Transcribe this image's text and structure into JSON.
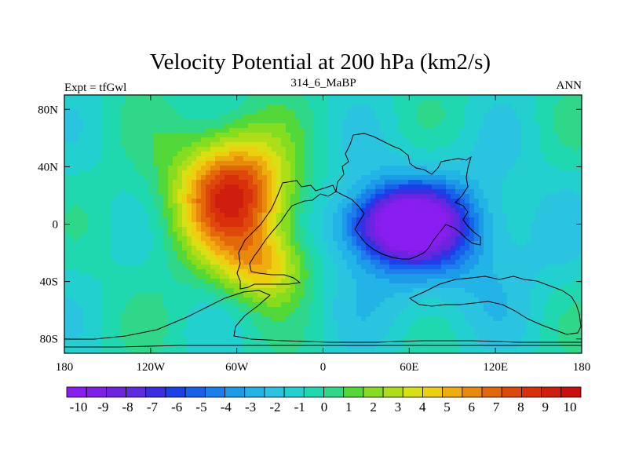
{
  "chart_data": {
    "type": "heatmap",
    "title": "Velocity Potential at 200 hPa (km2/s)",
    "left_label": "Expt = tfGwl",
    "center_label": "314_6_MaBP",
    "right_label": "ANN",
    "xlim": [
      -180,
      180
    ],
    "ylim": [
      -90,
      90
    ],
    "x_ticks": [
      {
        "value": -180,
        "label": "180"
      },
      {
        "value": -120,
        "label": "120W"
      },
      {
        "value": -60,
        "label": "60W"
      },
      {
        "value": 0,
        "label": "0"
      },
      {
        "value": 60,
        "label": "60E"
      },
      {
        "value": 120,
        "label": "120E"
      },
      {
        "value": 180,
        "label": "180"
      }
    ],
    "y_ticks": [
      {
        "value": 80,
        "label": "80N"
      },
      {
        "value": 40,
        "label": "40N"
      },
      {
        "value": 0,
        "label": "0"
      },
      {
        "value": -40,
        "label": "40S"
      },
      {
        "value": -80,
        "label": "80S"
      }
    ],
    "colorbar": {
      "labels": [
        "-10",
        "-9",
        "-8",
        "-7",
        "-6",
        "-5",
        "-4",
        "-3",
        "-2",
        "-1",
        "0",
        "1",
        "2",
        "3",
        "4",
        "5",
        "6",
        "7",
        "8",
        "9",
        "10"
      ],
      "colors": [
        "#8a1ef0",
        "#7f1fe8",
        "#6f23e0",
        "#5d2ae0",
        "#3a2ee0",
        "#1b3fe8",
        "#1660ea",
        "#1a7fea",
        "#1b9be8",
        "#22b4e6",
        "#2ac4e0",
        "#22d0d0",
        "#20d8b0",
        "#2ed888",
        "#52d838",
        "#86dc1e",
        "#aede18",
        "#d8e014",
        "#ecd010",
        "#eeae0e",
        "#ea8a0c",
        "#e2680a",
        "#de480a",
        "#d8300a",
        "#d01e0e",
        "#c81010"
      ]
    },
    "field_sources": [
      {
        "name": "high over South America",
        "lon": -62,
        "lat": 20,
        "amplitude": 9.6,
        "sigma_lon": 28,
        "sigma_lat": 30
      },
      {
        "name": "high tail over South Atlantic",
        "lon": -40,
        "lat": -30,
        "amplitude": 4.5,
        "sigma_lon": 22,
        "sigma_lat": 18
      },
      {
        "name": "low over Indian Ocean / Africa",
        "lon": 58,
        "lat": 0,
        "amplitude": -10.2,
        "sigma_lon": 26,
        "sigma_lat": 17
      },
      {
        "name": "weak low broad",
        "lon": 75,
        "lat": -10,
        "amplitude": -3.0,
        "sigma_lon": 55,
        "sigma_lat": 40
      }
    ],
    "background_value": -0.6
  }
}
